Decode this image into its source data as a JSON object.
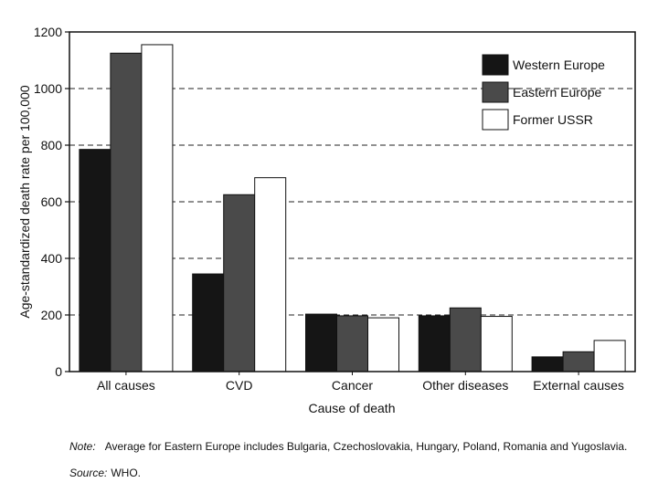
{
  "chart_data": {
    "type": "bar",
    "title": "",
    "xlabel": "Cause of death",
    "ylabel": "Age-standardized death rate per 100,000",
    "categories": [
      "All causes",
      "CVD",
      "Cancer",
      "Other diseases",
      "External causes"
    ],
    "series": [
      {
        "name": "Western Europe",
        "values": [
          785,
          345,
          203,
          197,
          52
        ],
        "color": "#151515"
      },
      {
        "name": "Eastern Europe",
        "values": [
          1125,
          625,
          197,
          225,
          70
        ],
        "color": "#4a4a4a"
      },
      {
        "name": "Former USSR",
        "values": [
          1155,
          685,
          190,
          195,
          110
        ],
        "color": "#ffffff"
      }
    ],
    "ylim": [
      0,
      1200
    ],
    "yticks": [
      "0",
      "200",
      "400",
      "600",
      "800",
      "1000",
      "1200"
    ],
    "grid": true,
    "legend_position": "top-right"
  },
  "note": {
    "label": "Note:",
    "text": "Average for Eastern Europe includes Bulgaria, Czechoslovakia, Hungary, Poland, Romania and Yugoslavia."
  },
  "source": {
    "label": "Source:",
    "text": "WHO."
  }
}
